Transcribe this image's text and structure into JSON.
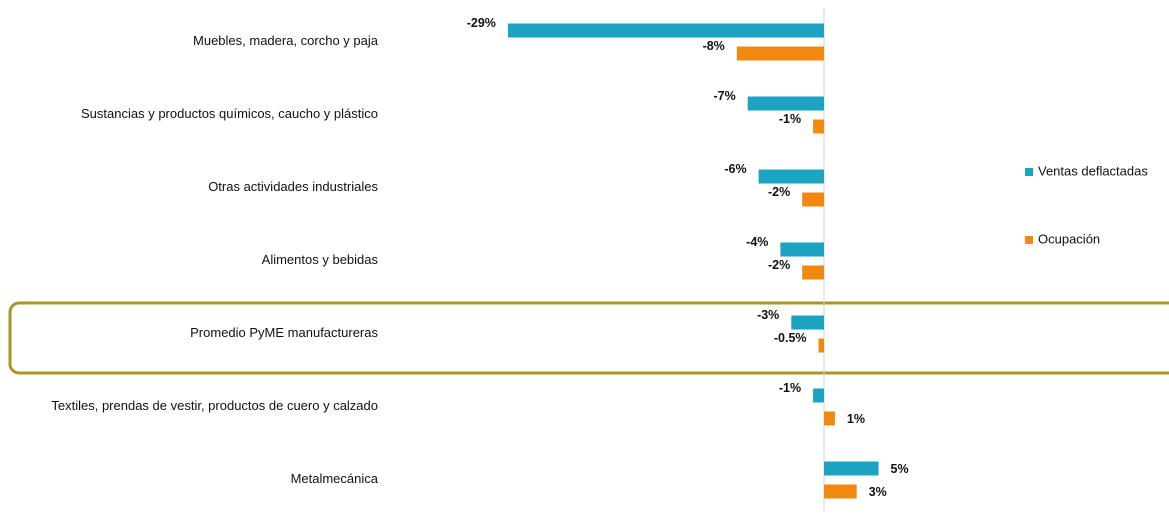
{
  "chart_data": {
    "type": "barh",
    "categories": [
      "Muebles, madera, corcho y paja",
      "Sustancias y productos químicos, caucho y plástico",
      "Otras actividades industriales",
      "Alimentos y bebidas",
      "Promedio PyME manufactureras",
      "Textiles, prendas de vestir, productos de cuero y calzado",
      "Metalmecánica"
    ],
    "series": [
      {
        "name": "Ventas deflactadas",
        "color": "#1ba3c1",
        "values": [
          -29,
          -7,
          -6,
          -4,
          -3,
          -1,
          5
        ],
        "value_labels": [
          "-29%",
          "-7%",
          "-6%",
          "-4%",
          "-3%",
          "-1%",
          "5%"
        ]
      },
      {
        "name": "Ocupación",
        "color": "#f18910",
        "values": [
          -8,
          -1,
          -2,
          -2,
          -0.5,
          1,
          3
        ],
        "value_labels": [
          "-8%",
          "-1%",
          "-2%",
          "-2%",
          "-0.5%",
          "1%",
          "3%"
        ]
      }
    ],
    "xlim": [
      -40,
      20
    ],
    "legend": "right"
  }
}
